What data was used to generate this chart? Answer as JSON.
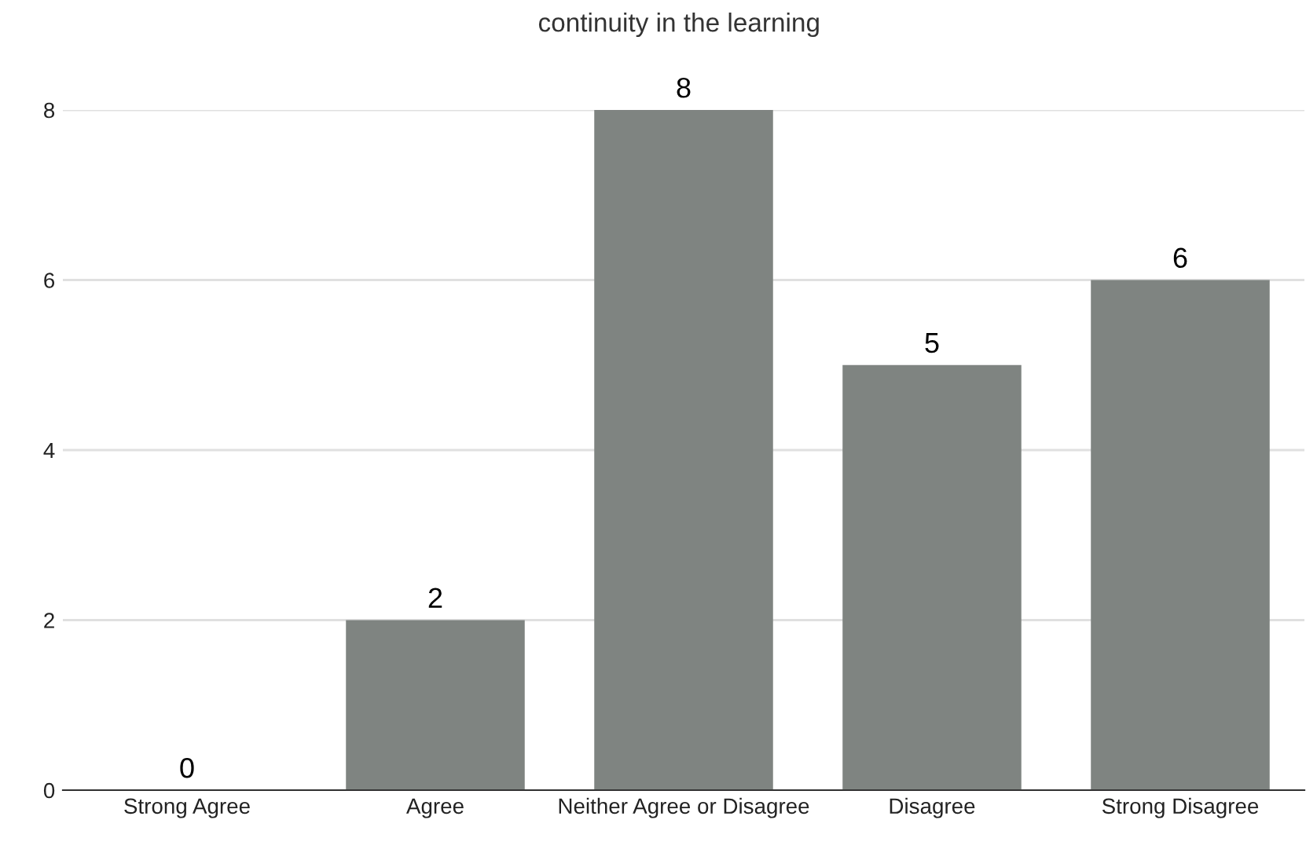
{
  "chart_data": {
    "type": "bar",
    "title": "continuity in the learning",
    "categories": [
      "Strong Agree",
      "Agree",
      "Neither Agree or Disagree",
      "Disagree",
      "Strong Disagree"
    ],
    "values": [
      0,
      2,
      8,
      5,
      6
    ],
    "color": "#7f8481",
    "ylim": [
      0,
      8
    ],
    "yticks": [
      0,
      2,
      4,
      6,
      8
    ],
    "grid": "y",
    "data_labels": true
  }
}
